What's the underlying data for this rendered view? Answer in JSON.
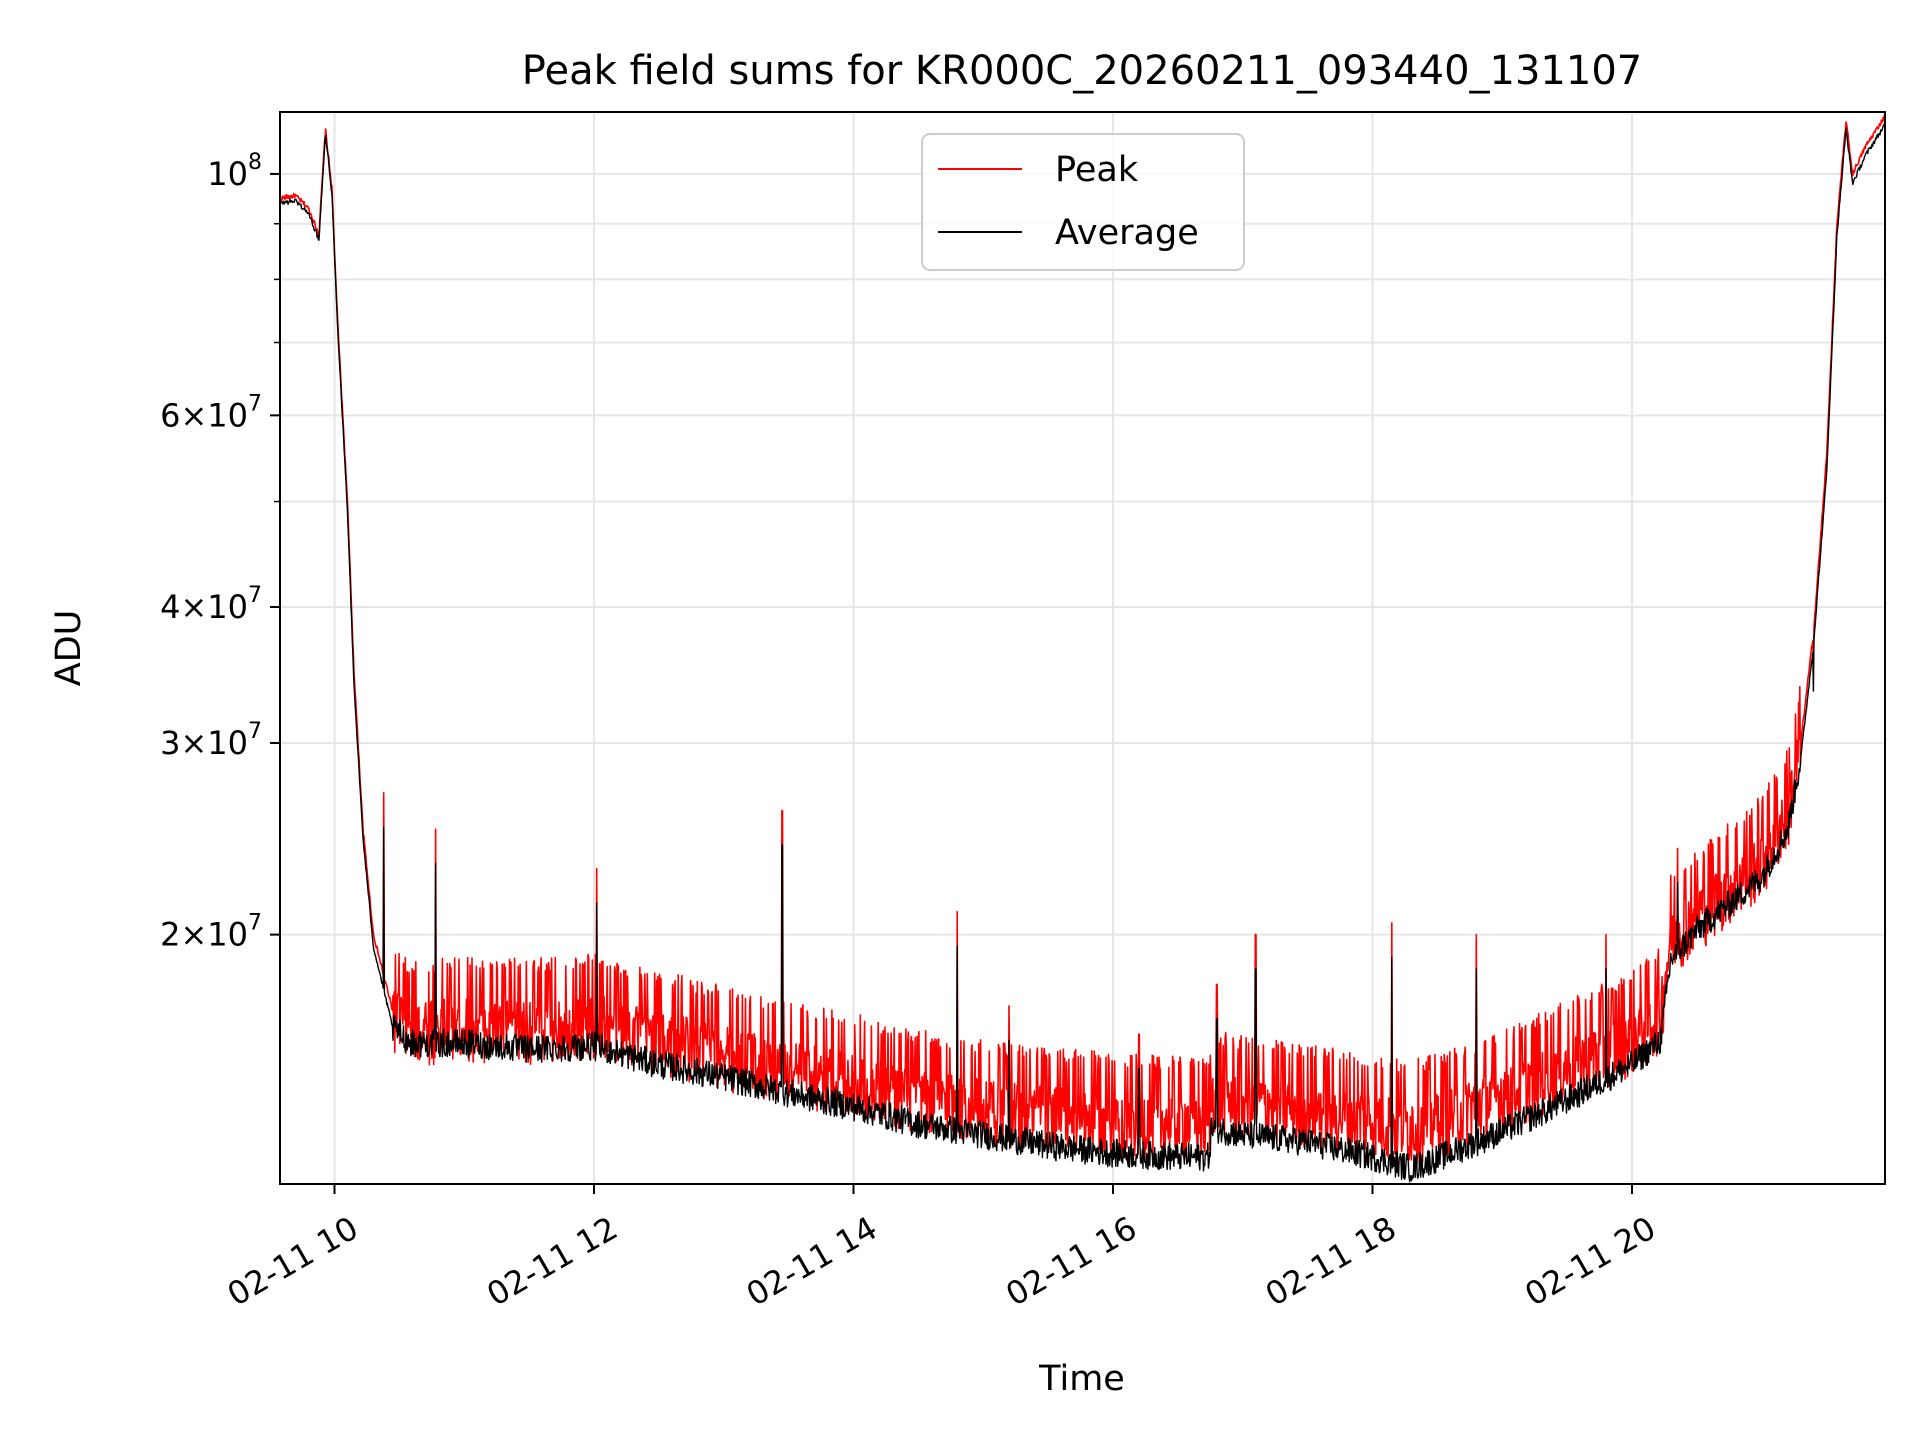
{
  "chart_data": {
    "type": "line",
    "title": "Peak field sums for KR000C_20260211_093440_131107",
    "xlabel": "Time",
    "ylabel": "ADU",
    "yscale": "log",
    "grid": true,
    "legend_position": "top-center",
    "xlim": [
      9.58,
      21.95
    ],
    "ylim": [
      11800000,
      114000000
    ],
    "x_ticks": [
      {
        "value": 10,
        "label": "02-11 10"
      },
      {
        "value": 12,
        "label": "02-11 12"
      },
      {
        "value": 14,
        "label": "02-11 14"
      },
      {
        "value": 16,
        "label": "02-11 16"
      },
      {
        "value": 18,
        "label": "02-11 18"
      },
      {
        "value": 20,
        "label": "02-11 20"
      }
    ],
    "y_ticks": [
      {
        "value": 20000000,
        "mantissa": "2",
        "exponent": "7"
      },
      {
        "value": 30000000,
        "mantissa": "3",
        "exponent": "7"
      },
      {
        "value": 40000000,
        "mantissa": "4",
        "exponent": "7"
      },
      {
        "value": 60000000,
        "mantissa": "6",
        "exponent": "7"
      },
      {
        "value": 100000000,
        "mantissa": "10",
        "exponent": "8"
      }
    ],
    "y_minor_ticks": [
      50000000,
      70000000,
      80000000,
      90000000
    ],
    "series": [
      {
        "name": "Peak",
        "color": "#ff0000",
        "points": [
          [
            9.58,
            95000000
          ],
          [
            9.7,
            95500000
          ],
          [
            9.8,
            93000000
          ],
          [
            9.88,
            88000000
          ],
          [
            9.93,
            110000000
          ],
          [
            9.98,
            97000000
          ],
          [
            10.02,
            75000000
          ],
          [
            10.1,
            50000000
          ],
          [
            10.15,
            35000000
          ],
          [
            10.22,
            25000000
          ],
          [
            10.3,
            20000000
          ],
          [
            10.45,
            17000000
          ],
          [
            10.6,
            16500000
          ],
          [
            11.0,
            16700000
          ],
          [
            11.5,
            16600000
          ],
          [
            12.0,
            16800000
          ],
          [
            12.5,
            16200000
          ],
          [
            13.0,
            15700000
          ],
          [
            13.5,
            15200000
          ],
          [
            14.0,
            14800000
          ],
          [
            14.5,
            14300000
          ],
          [
            15.0,
            14000000
          ],
          [
            15.5,
            13800000
          ],
          [
            16.0,
            13600000
          ],
          [
            16.5,
            13500000
          ],
          [
            16.74,
            13500000
          ],
          [
            16.76,
            14300000
          ],
          [
            17.0,
            14100000
          ],
          [
            17.5,
            13900000
          ],
          [
            18.0,
            13600000
          ],
          [
            18.3,
            13400000
          ],
          [
            18.6,
            13700000
          ],
          [
            19.0,
            14300000
          ],
          [
            19.5,
            15200000
          ],
          [
            20.0,
            16200000
          ],
          [
            20.22,
            17000000
          ],
          [
            20.3,
            20000000
          ],
          [
            20.5,
            21000000
          ],
          [
            20.8,
            22500000
          ],
          [
            21.0,
            23500000
          ],
          [
            21.2,
            26000000
          ],
          [
            21.3,
            30000000
          ],
          [
            21.4,
            38000000
          ],
          [
            21.5,
            55000000
          ],
          [
            21.58,
            90000000
          ],
          [
            21.65,
            112000000
          ],
          [
            21.7,
            100000000
          ],
          [
            21.8,
            106000000
          ],
          [
            21.95,
            113000000
          ]
        ]
      },
      {
        "name": "Average",
        "color": "#000000",
        "points": [
          [
            9.58,
            94000000
          ],
          [
            9.7,
            94500000
          ],
          [
            9.8,
            92000000
          ],
          [
            9.88,
            87000000
          ],
          [
            9.93,
            109000000
          ],
          [
            9.98,
            96000000
          ],
          [
            10.02,
            74000000
          ],
          [
            10.1,
            49000000
          ],
          [
            10.15,
            34000000
          ],
          [
            10.22,
            24500000
          ],
          [
            10.3,
            19500000
          ],
          [
            10.45,
            16400000
          ],
          [
            10.6,
            15900000
          ],
          [
            11.0,
            15900000
          ],
          [
            11.5,
            15700000
          ],
          [
            12.0,
            15800000
          ],
          [
            12.5,
            15200000
          ],
          [
            13.0,
            14800000
          ],
          [
            13.5,
            14300000
          ],
          [
            14.0,
            13900000
          ],
          [
            14.5,
            13400000
          ],
          [
            15.0,
            13100000
          ],
          [
            15.5,
            12800000
          ],
          [
            16.0,
            12600000
          ],
          [
            16.5,
            12500000
          ],
          [
            16.74,
            12500000
          ],
          [
            16.76,
            13300000
          ],
          [
            17.0,
            13100000
          ],
          [
            17.5,
            12900000
          ],
          [
            18.0,
            12500000
          ],
          [
            18.3,
            12200000
          ],
          [
            18.6,
            12600000
          ],
          [
            19.0,
            13200000
          ],
          [
            19.5,
            14100000
          ],
          [
            20.0,
            15200000
          ],
          [
            20.22,
            16000000
          ],
          [
            20.3,
            19000000
          ],
          [
            20.5,
            20200000
          ],
          [
            20.8,
            21600000
          ],
          [
            21.0,
            22600000
          ],
          [
            21.2,
            25000000
          ],
          [
            21.3,
            29000000
          ],
          [
            21.4,
            37000000
          ],
          [
            21.5,
            53000000
          ],
          [
            21.58,
            88000000
          ],
          [
            21.65,
            110000000
          ],
          [
            21.7,
            98000000
          ],
          [
            21.8,
            104000000
          ],
          [
            21.95,
            111000000
          ]
        ]
      }
    ],
    "spikes": [
      {
        "x": 10.38,
        "value": 27000000
      },
      {
        "x": 10.78,
        "value": 25000000
      },
      {
        "x": 12.02,
        "value": 23000000
      },
      {
        "x": 13.45,
        "value": 26000000
      },
      {
        "x": 14.8,
        "value": 21000000
      },
      {
        "x": 15.2,
        "value": 17200000
      },
      {
        "x": 16.2,
        "value": 16200000
      },
      {
        "x": 16.8,
        "value": 18000000
      },
      {
        "x": 17.1,
        "value": 20000000
      },
      {
        "x": 18.15,
        "value": 20500000
      },
      {
        "x": 18.8,
        "value": 20000000
      },
      {
        "x": 19.8,
        "value": 20000000
      },
      {
        "x": 20.35,
        "value": 24000000
      },
      {
        "x": 21.4,
        "value": 36000000
      }
    ]
  }
}
